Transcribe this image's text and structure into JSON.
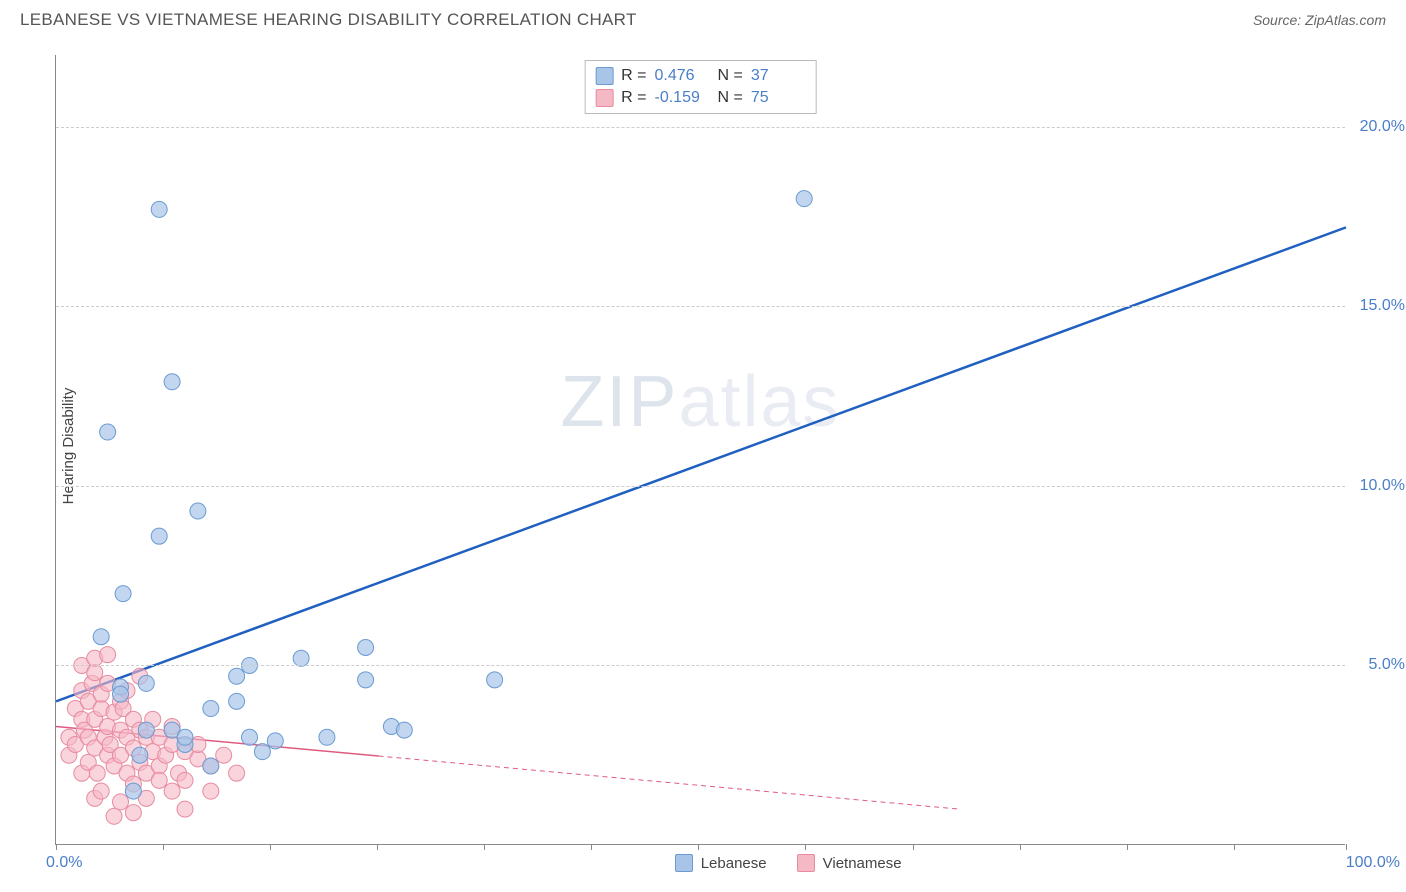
{
  "header": {
    "title": "LEBANESE VS VIETNAMESE HEARING DISABILITY CORRELATION CHART",
    "source_label": "Source: ZipAtlas.com"
  },
  "chart": {
    "type": "scatter",
    "ylabel": "Hearing Disability",
    "background_color": "#ffffff",
    "grid_color": "#cccccc",
    "grid_style": "dashed",
    "axis_color": "#888888",
    "tick_label_color": "#4a7ec9",
    "tick_fontsize": 16,
    "xlim": [
      0,
      100
    ],
    "ylim": [
      0,
      22
    ],
    "x_tick_positions": [
      0,
      8.3,
      16.6,
      24.9,
      33.2,
      41.5,
      49.8,
      58.1,
      66.4,
      74.7,
      83.0,
      91.3,
      100
    ],
    "x_tick_labels": {
      "min": "0.0%",
      "max": "100.0%"
    },
    "y_gridlines": [
      5,
      10,
      15,
      20
    ],
    "y_tick_labels": [
      "5.0%",
      "10.0%",
      "15.0%",
      "20.0%"
    ],
    "watermark": {
      "text_bold": "ZIP",
      "text_light": "atlas"
    },
    "series": [
      {
        "name": "Lebanese",
        "color_fill": "#a8c5e8",
        "color_stroke": "#6b9bd1",
        "marker_radius": 8,
        "marker_opacity": 0.7,
        "trend": {
          "color": "#2060c0",
          "width": 2.5,
          "x1": 0,
          "y1": 4.0,
          "x2": 100,
          "y2": 17.2,
          "solid_until_x": 100
        },
        "R": "0.476",
        "N": "37",
        "points": [
          [
            3.5,
            5.8
          ],
          [
            4,
            11.5
          ],
          [
            5.2,
            7.0
          ],
          [
            5,
            4.4
          ],
          [
            5,
            4.2
          ],
          [
            6,
            1.5
          ],
          [
            6.5,
            2.5
          ],
          [
            7,
            3.2
          ],
          [
            7,
            4.5
          ],
          [
            8,
            17.7
          ],
          [
            8,
            8.6
          ],
          [
            9,
            12.9
          ],
          [
            9,
            3.2
          ],
          [
            10,
            2.8
          ],
          [
            10,
            3.0
          ],
          [
            11,
            9.3
          ],
          [
            12,
            3.8
          ],
          [
            12,
            2.2
          ],
          [
            14,
            4.0
          ],
          [
            14,
            4.7
          ],
          [
            15,
            5.0
          ],
          [
            15,
            3.0
          ],
          [
            16,
            2.6
          ],
          [
            17,
            2.9
          ],
          [
            19,
            5.2
          ],
          [
            21,
            3.0
          ],
          [
            24,
            5.5
          ],
          [
            24,
            4.6
          ],
          [
            26,
            3.3
          ],
          [
            27,
            3.2
          ],
          [
            34,
            4.6
          ],
          [
            58,
            18.0
          ]
        ]
      },
      {
        "name": "Vietnamese",
        "color_fill": "#f5b8c5",
        "color_stroke": "#e88ba0",
        "marker_radius": 8,
        "marker_opacity": 0.6,
        "trend": {
          "color": "#e05a80",
          "width": 1.5,
          "x1": 0,
          "y1": 3.3,
          "x2": 70,
          "y2": 1.0,
          "solid_until_x": 25,
          "dash": "5,4"
        },
        "R": "-0.159",
        "N": "75",
        "points": [
          [
            1,
            3.0
          ],
          [
            1,
            2.5
          ],
          [
            1.5,
            3.8
          ],
          [
            1.5,
            2.8
          ],
          [
            2,
            4.3
          ],
          [
            2,
            3.5
          ],
          [
            2,
            5.0
          ],
          [
            2,
            2.0
          ],
          [
            2.2,
            3.2
          ],
          [
            2.5,
            4.0
          ],
          [
            2.5,
            3.0
          ],
          [
            2.5,
            2.3
          ],
          [
            2.8,
            4.5
          ],
          [
            3,
            3.5
          ],
          [
            3,
            4.8
          ],
          [
            3,
            2.7
          ],
          [
            3,
            5.2
          ],
          [
            3,
            1.3
          ],
          [
            3.2,
            2.0
          ],
          [
            3.5,
            3.8
          ],
          [
            3.5,
            4.2
          ],
          [
            3.5,
            1.5
          ],
          [
            3.8,
            3.0
          ],
          [
            4,
            4.5
          ],
          [
            4,
            2.5
          ],
          [
            4,
            3.3
          ],
          [
            4,
            5.3
          ],
          [
            4.2,
            2.8
          ],
          [
            4.5,
            3.7
          ],
          [
            4.5,
            2.2
          ],
          [
            4.5,
            0.8
          ],
          [
            5,
            4.0
          ],
          [
            5,
            3.2
          ],
          [
            5,
            2.5
          ],
          [
            5,
            1.2
          ],
          [
            5.2,
            3.8
          ],
          [
            5.5,
            3.0
          ],
          [
            5.5,
            2.0
          ],
          [
            5.5,
            4.3
          ],
          [
            6,
            3.5
          ],
          [
            6,
            2.7
          ],
          [
            6,
            1.7
          ],
          [
            6,
            0.9
          ],
          [
            6.5,
            3.2
          ],
          [
            6.5,
            2.3
          ],
          [
            6.5,
            4.7
          ],
          [
            7,
            3.0
          ],
          [
            7,
            2.0
          ],
          [
            7,
            1.3
          ],
          [
            7.5,
            2.6
          ],
          [
            7.5,
            3.5
          ],
          [
            8,
            2.2
          ],
          [
            8,
            1.8
          ],
          [
            8,
            3.0
          ],
          [
            8.5,
            2.5
          ],
          [
            9,
            2.8
          ],
          [
            9,
            1.5
          ],
          [
            9,
            3.3
          ],
          [
            9.5,
            2.0
          ],
          [
            10,
            2.6
          ],
          [
            10,
            1.8
          ],
          [
            10,
            1.0
          ],
          [
            11,
            2.4
          ],
          [
            11,
            2.8
          ],
          [
            12,
            2.2
          ],
          [
            12,
            1.5
          ],
          [
            13,
            2.5
          ],
          [
            14,
            2.0
          ]
        ]
      }
    ],
    "legend_top": {
      "rows": [
        {
          "swatch_fill": "#a8c5e8",
          "swatch_stroke": "#6b9bd1",
          "r_label": "R =",
          "r_val": "0.476",
          "n_label": "N =",
          "n_val": "37"
        },
        {
          "swatch_fill": "#f5b8c5",
          "swatch_stroke": "#e88ba0",
          "r_label": "R =",
          "r_val": "-0.159",
          "n_label": "N =",
          "n_val": "75"
        }
      ]
    },
    "legend_bottom": [
      {
        "swatch_fill": "#a8c5e8",
        "swatch_stroke": "#6b9bd1",
        "label": "Lebanese"
      },
      {
        "swatch_fill": "#f5b8c5",
        "swatch_stroke": "#e88ba0",
        "label": "Vietnamese"
      }
    ]
  }
}
